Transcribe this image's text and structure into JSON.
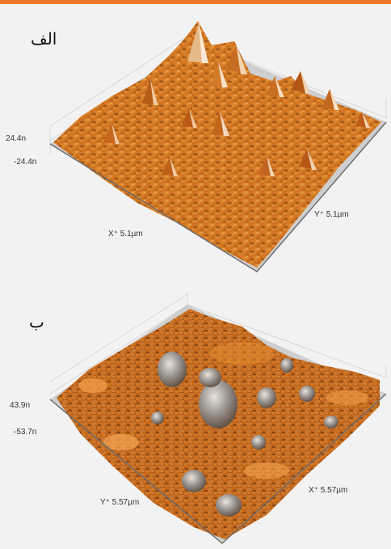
{
  "colors": {
    "accent_bar": "#ec7a2c",
    "surface_orange": "#d9761f",
    "surface_dark": "#5a2d0c",
    "surface_highlight": "#f6e4cf",
    "grid": "#bdbdbd"
  },
  "panels": [
    {
      "label": "الف",
      "z_max": "24.4n",
      "z_min": "-24.4n",
      "x_axis": "X⁺ 5.1µm",
      "y_axis": "Y⁺ 5.1µm"
    },
    {
      "label": "ب",
      "z_max": "43.9n",
      "z_min": "-53.7n",
      "x_axis": "Y⁺ 5.57µm",
      "y_axis": "X⁺ 5.57µm"
    }
  ]
}
